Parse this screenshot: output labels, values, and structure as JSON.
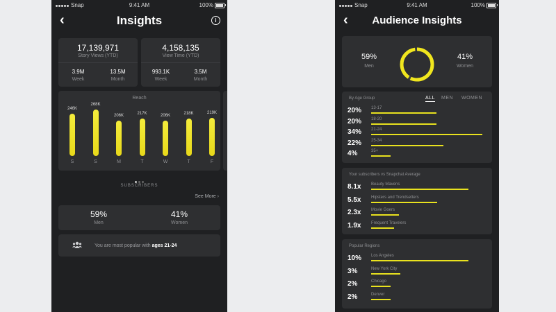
{
  "left": {
    "status": {
      "carrier": "Snap",
      "time": "9:41 AM",
      "battery": "100%"
    },
    "title": "Insights",
    "info_glyph": "i",
    "story_views": {
      "value": "17,139,971",
      "label": "Story Views (YTD)"
    },
    "view_time": {
      "value": "4,158,135",
      "label": "View Time (YTD)"
    },
    "story_week": {
      "value": "3.9M",
      "label": "Week"
    },
    "story_month": {
      "value": "13.5M",
      "label": "Month"
    },
    "time_week": {
      "value": "993.1K",
      "label": "Week"
    },
    "time_month": {
      "value": "3.5M",
      "label": "Month"
    },
    "reach": {
      "title": "Reach",
      "bars": [
        {
          "day": "S",
          "label": "246K",
          "value": 246
        },
        {
          "day": "S",
          "label": "268K",
          "value": 268
        },
        {
          "day": "M",
          "label": "206K",
          "value": 206
        },
        {
          "day": "T",
          "label": "217K",
          "value": 217
        },
        {
          "day": "W",
          "label": "206K",
          "value": 206
        },
        {
          "day": "T",
          "label": "218K",
          "value": 218
        },
        {
          "day": "F",
          "label": "219K",
          "value": 219
        }
      ]
    },
    "subscribers_label": "SUBSCRIBERS",
    "see_more": "See More",
    "men": {
      "value": "59%",
      "label": "Men"
    },
    "women": {
      "value": "41%",
      "label": "Women"
    },
    "popular": {
      "prefix": "You are most popular with ",
      "highlight": "ages 21-24"
    }
  },
  "right": {
    "status": {
      "carrier": "Snap",
      "time": "9:41 AM",
      "battery": "100%"
    },
    "title": "Audience Insights",
    "men": {
      "value": "59%",
      "label": "Men"
    },
    "women": {
      "value": "41%",
      "label": "Women"
    },
    "ring_fraction": 0.59,
    "age": {
      "title": "By Age Group",
      "tabs": [
        "ALL",
        "MEN",
        "WOMEN"
      ],
      "rows": [
        {
          "pct": "20%",
          "label": "13-17",
          "fraction": 0.2
        },
        {
          "pct": "20%",
          "label": "18-20",
          "fraction": 0.2
        },
        {
          "pct": "34%",
          "label": "21-24",
          "fraction": 0.34
        },
        {
          "pct": "22%",
          "label": "25-34",
          "fraction": 0.22
        },
        {
          "pct": "4%",
          "label": "35+",
          "fraction": 0.04
        }
      ]
    },
    "avg": {
      "title": "Your subscribers vs Snapchat Average",
      "rows": [
        {
          "pct": "8.1x",
          "label": "Beauty Mavens",
          "fraction": 0.81
        },
        {
          "pct": "5.5x",
          "label": "Hipsters and Trendsetters",
          "fraction": 0.55
        },
        {
          "pct": "2.3x",
          "label": "Movie Goers",
          "fraction": 0.23
        },
        {
          "pct": "1.9x",
          "label": "Frequent Travelers",
          "fraction": 0.19
        }
      ]
    },
    "regions": {
      "title": "Popular Regions",
      "rows": [
        {
          "pct": "10%",
          "label": "Los Angeles",
          "fraction": 0.1
        },
        {
          "pct": "3%",
          "label": "New York City",
          "fraction": 0.03
        },
        {
          "pct": "2%",
          "label": "Chicago",
          "fraction": 0.02
        },
        {
          "pct": "2%",
          "label": "Denver",
          "fraction": 0.02
        }
      ]
    }
  }
}
